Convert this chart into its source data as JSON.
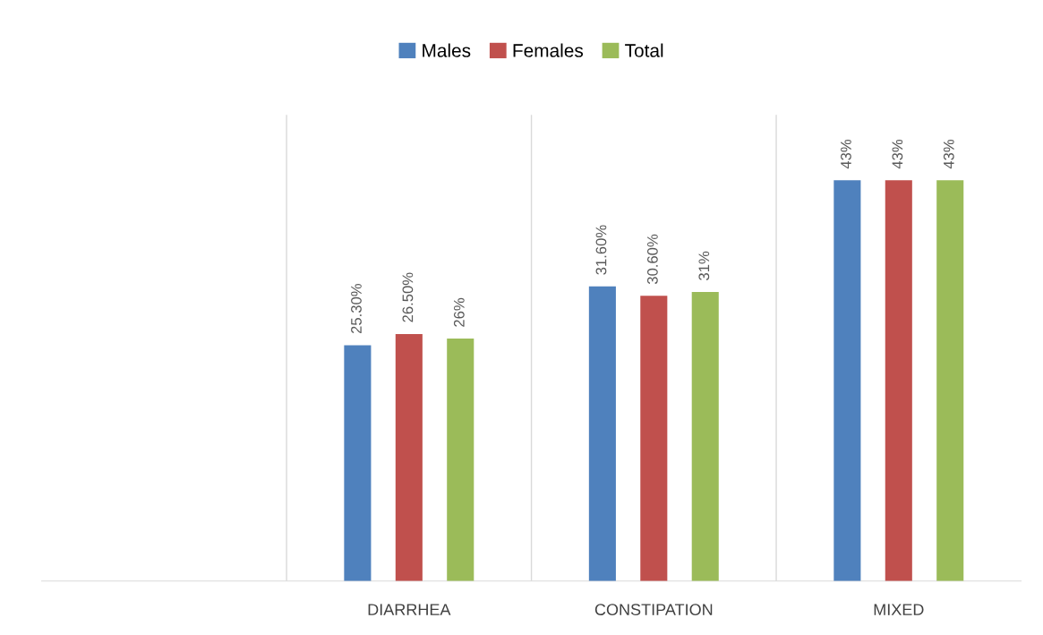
{
  "chart_data": {
    "type": "bar",
    "categories": [
      null,
      "DIARRHEA",
      "CONSTIPATION",
      "MIXED"
    ],
    "series": [
      {
        "name": "Males",
        "color": "#4f81bd",
        "values": [
          null,
          25.3,
          31.6,
          43
        ],
        "value_labels": [
          null,
          "25.30%",
          "31.60%",
          "43%"
        ]
      },
      {
        "name": "Females",
        "color": "#c0504d",
        "values": [
          null,
          26.5,
          30.6,
          43
        ],
        "value_labels": [
          null,
          "26.50%",
          "30.60%",
          "43%"
        ]
      },
      {
        "name": "Total",
        "color": "#9bbb59",
        "values": [
          null,
          26,
          31,
          43
        ],
        "value_labels": [
          null,
          "26%",
          "31%",
          "43%"
        ]
      }
    ],
    "ylim": [
      0,
      50
    ],
    "tick_labels": "x",
    "grid": "x",
    "legend": "top"
  }
}
